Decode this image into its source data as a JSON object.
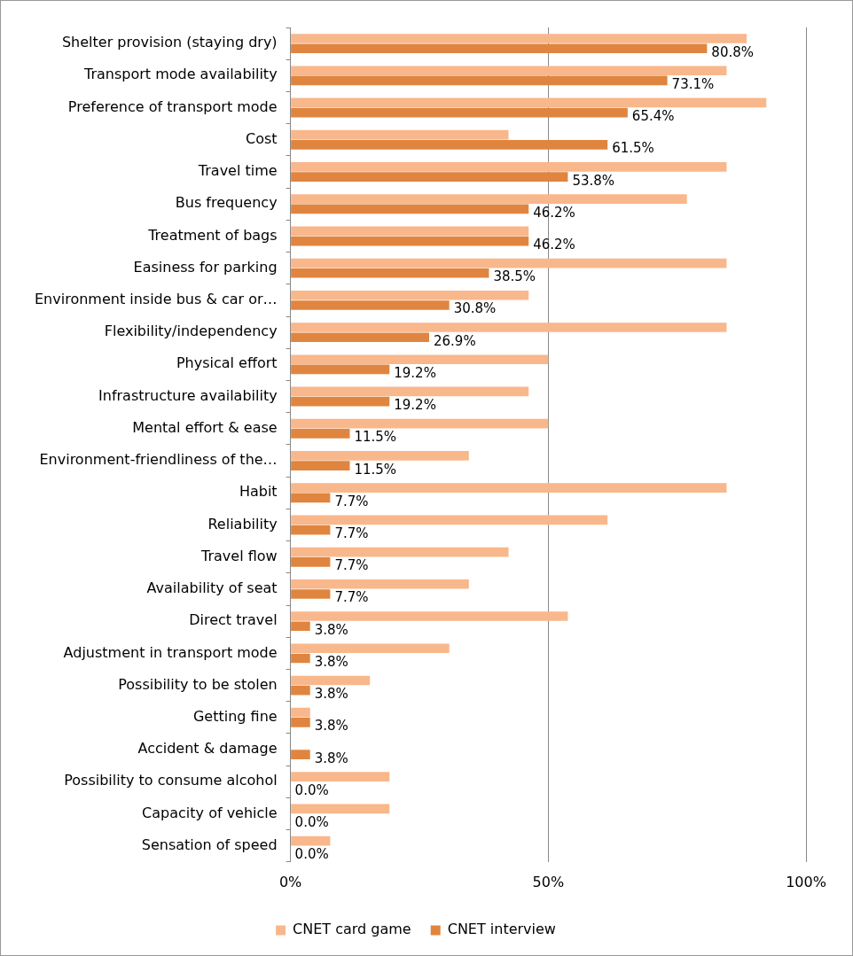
{
  "chart_data": {
    "type": "bar",
    "orientation": "horizontal",
    "categories": [
      "Shelter provision (staying dry)",
      "Transport mode availability",
      "Preference of transport mode",
      "Cost",
      "Travel time",
      "Bus frequency",
      "Treatment of bags",
      "Easiness for parking",
      "Environment inside bus & car or…",
      "Flexibility/independency",
      "Physical effort",
      "Infrastructure availability",
      "Mental effort & ease",
      "Environment-friendliness of the…",
      "Habit",
      "Reliability",
      "Travel flow",
      "Availability of seat",
      "Direct travel",
      "Adjustment in transport mode",
      "Possibility to be stolen",
      "Getting fine",
      "Accident & damage",
      "Possibility to consume alcohol",
      "Capacity of vehicle",
      "Sensation of speed"
    ],
    "series": [
      {
        "name": "CNET card game",
        "color": "#f9b78c",
        "values": [
          88.5,
          84.6,
          92.3,
          42.3,
          84.6,
          76.9,
          46.2,
          84.6,
          46.2,
          84.6,
          50,
          46.2,
          50,
          34.6,
          84.6,
          61.5,
          42.3,
          34.6,
          53.8,
          30.8,
          15.4,
          3.8,
          0,
          19.2,
          19.2,
          7.7
        ]
      },
      {
        "name": "CNET interview",
        "color": "#e0853f",
        "values": [
          80.8,
          73.1,
          65.4,
          61.5,
          53.8,
          46.2,
          46.2,
          38.5,
          30.8,
          26.9,
          19.2,
          19.2,
          11.5,
          11.5,
          7.7,
          7.7,
          7.7,
          7.7,
          3.8,
          3.8,
          3.8,
          3.8,
          3.8,
          0,
          0,
          0
        ],
        "value_labels": [
          "80.8%",
          "73.1%",
          "65.4%",
          "61.5%",
          "53.8%",
          "46.2%",
          "46.2%",
          "38.5%",
          "30.8%",
          "26.9%",
          "19.2%",
          "19.2%",
          "11.5%",
          "11.5%",
          "7.7%",
          "7.7%",
          "7.7%",
          "7.7%",
          "3.8%",
          "3.8%",
          "3.8%",
          "3.8%",
          "3.8%",
          "0.0%",
          "0.0%",
          "0.0%"
        ]
      }
    ],
    "xlim": [
      0,
      100
    ],
    "xticks": [
      {
        "value": 0,
        "label": "0%"
      },
      {
        "value": 50,
        "label": "50%"
      },
      {
        "value": 100,
        "label": "100%"
      }
    ],
    "grid": "x",
    "legend": "bottom"
  }
}
